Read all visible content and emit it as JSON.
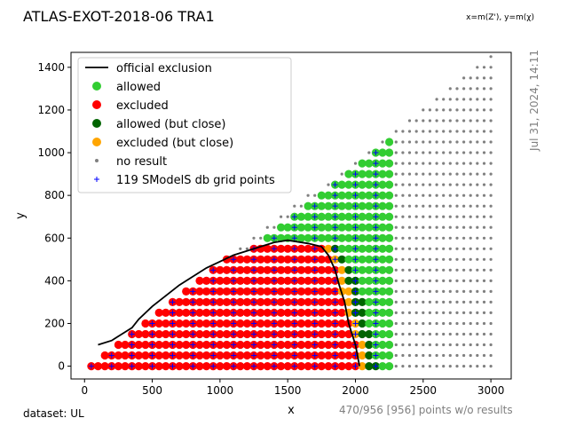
{
  "chart_data": {
    "type": "scatter",
    "title": "ATLAS-EXOT-2018-06 TRA1",
    "subtitle": "x=m(Z'), y=m(χ)",
    "xlabel": "x",
    "ylabel": "y",
    "xlim": [
      -100,
      3150
    ],
    "ylim": [
      -60,
      1470
    ],
    "xticks": [
      0,
      500,
      1000,
      1500,
      2000,
      2500,
      3000
    ],
    "yticks": [
      0,
      200,
      400,
      600,
      800,
      1000,
      1200,
      1400
    ],
    "grid": false,
    "legend_position": "top-left",
    "legend": [
      {
        "label": "official exclusion",
        "marker": "line",
        "color": "#000000"
      },
      {
        "label": "allowed",
        "marker": "dot",
        "color": "#32cd32"
      },
      {
        "label": "excluded",
        "marker": "dot",
        "color": "#ff0000"
      },
      {
        "label": "allowed (but close)",
        "marker": "dot",
        "color": "#006400"
      },
      {
        "label": "excluded (but close)",
        "marker": "dot",
        "color": "#ffa500"
      },
      {
        "label": "no result",
        "marker": "small-dot",
        "color": "#808080"
      },
      {
        "label": "119 SModelS db grid points",
        "marker": "plus",
        "color": "#0000ff"
      }
    ],
    "official_exclusion": {
      "x": [
        100,
        200,
        250,
        300,
        350,
        400,
        500,
        700,
        900,
        1100,
        1300,
        1400,
        1500,
        1650,
        1750,
        1800,
        1850,
        1880,
        1920,
        1950,
        2000,
        2030
      ],
      "y": [
        100,
        120,
        140,
        160,
        180,
        220,
        280,
        380,
        460,
        520,
        560,
        580,
        590,
        575,
        560,
        520,
        450,
        380,
        300,
        200,
        100,
        0
      ]
    },
    "grid_rule": {
      "x_start": 50,
      "x_end": 3000,
      "x_step": 50,
      "y_start": 0,
      "y_end": 1450,
      "y_step": 50,
      "y_max_over_x": 0.485
    },
    "zones": [
      {
        "status": "excluded",
        "rule": "inside official exclusion contour"
      },
      {
        "status": "excluded (but close)",
        "rule": "just outside contour, up to ~60 GeV in x"
      },
      {
        "status": "allowed (but close)",
        "rule": "next ~50 GeV beyond that band"
      },
      {
        "status": "allowed",
        "rule": "x <= 2250 beyond the close bands"
      },
      {
        "status": "no result",
        "rule": "x > 2250 or y near diagonal"
      }
    ],
    "db_grid_points_count": 119,
    "db_grid_points_rule": "every 3rd x column (blue +) up to x=2250"
  },
  "footer": {
    "dataset": "dataset: UL",
    "points_summary": "470/956 [956] points w/o results",
    "timestamp": "Jul 31, 2024, 14:11"
  },
  "colors": {
    "allowed": "#32cd32",
    "excluded": "#ff0000",
    "allowed_close": "#006400",
    "excluded_close": "#ffa500",
    "no_result": "#808080",
    "db_point": "#0000ff"
  }
}
